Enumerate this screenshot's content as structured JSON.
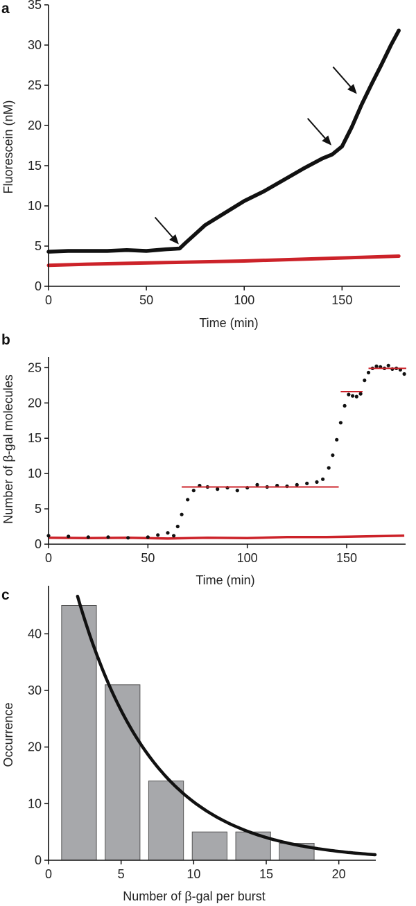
{
  "figure": {
    "panel_labels": [
      "a",
      "b",
      "c"
    ]
  },
  "chart_data": [
    {
      "panel": "a",
      "type": "line",
      "xlabel": "Time (min)",
      "ylabel": "Fluorescein (nM)",
      "xlim": [
        0,
        180
      ],
      "ylim": [
        0,
        35
      ],
      "xticks": [
        0,
        50,
        100,
        150
      ],
      "yticks": [
        0,
        5,
        10,
        15,
        20,
        25,
        30,
        35
      ],
      "grid": false,
      "colors": {
        "black_series": "#111111",
        "red_series": "#cc2229",
        "arrow": "#111111"
      },
      "series": [
        {
          "color": "#111111",
          "x": [
            0,
            10,
            20,
            30,
            40,
            50,
            60,
            67,
            70,
            75,
            80,
            90,
            100,
            110,
            120,
            130,
            140,
            145,
            150,
            155,
            160,
            165,
            170,
            175,
            179
          ],
          "y": [
            4.3,
            4.4,
            4.4,
            4.4,
            4.5,
            4.4,
            4.6,
            4.7,
            5.4,
            6.5,
            7.6,
            9.1,
            10.6,
            11.8,
            13.2,
            14.6,
            15.9,
            16.4,
            17.4,
            19.8,
            22.6,
            25.1,
            27.5,
            30.0,
            31.8
          ]
        },
        {
          "color": "#cc2229",
          "x": [
            0,
            20,
            40,
            60,
            80,
            100,
            120,
            140,
            160,
            179
          ],
          "y": [
            2.6,
            2.75,
            2.85,
            2.95,
            3.05,
            3.15,
            3.3,
            3.45,
            3.6,
            3.75
          ]
        }
      ],
      "arrows": [
        {
          "x": 68,
          "y": 4.7
        },
        {
          "x": 146,
          "y": 17.0
        },
        {
          "x": 159,
          "y": 23.4
        }
      ]
    },
    {
      "panel": "b",
      "type": "scatter",
      "xlabel": "Time (min)",
      "ylabel": "Number of β-gal molecules",
      "xlim": [
        0,
        180
      ],
      "ylim": [
        0,
        27
      ],
      "xticks": [
        0,
        50,
        100,
        150
      ],
      "yticks": [
        0,
        5,
        10,
        15,
        20,
        25
      ],
      "grid": false,
      "colors": {
        "points": "#111111",
        "red_series": "#cc2229",
        "levels": "#cc2229"
      },
      "series": [
        {
          "color": "#111111",
          "x": [
            0,
            10,
            20,
            30,
            40,
            50,
            55,
            60,
            63,
            65,
            67,
            70,
            73,
            76,
            80,
            85,
            90,
            95,
            100,
            105,
            110,
            115,
            120,
            125,
            130,
            135,
            138,
            141,
            143,
            145,
            147,
            149,
            151,
            153,
            155,
            157,
            159,
            161,
            163,
            165,
            167,
            169,
            171,
            173,
            175,
            177,
            179
          ],
          "y": [
            1.2,
            1.1,
            1.0,
            1.0,
            0.9,
            1.0,
            1.3,
            1.6,
            1.2,
            2.5,
            4.2,
            6.3,
            7.6,
            8.3,
            8.1,
            7.8,
            8.0,
            7.6,
            8.0,
            8.4,
            8.1,
            8.3,
            8.2,
            8.4,
            8.6,
            8.8,
            9.2,
            10.8,
            12.6,
            14.8,
            17.2,
            19.6,
            21.2,
            21.0,
            20.9,
            21.3,
            23.2,
            24.3,
            24.9,
            25.2,
            25.1,
            24.9,
            25.3,
            24.8,
            24.9,
            24.7,
            24.1
          ]
        },
        {
          "color": "#cc2229",
          "x": [
            0,
            20,
            40,
            60,
            80,
            100,
            120,
            140,
            160,
            179
          ],
          "y": [
            0.9,
            0.85,
            0.9,
            0.8,
            0.9,
            0.85,
            1.0,
            1.0,
            1.1,
            1.2
          ]
        }
      ],
      "levels": [
        {
          "x_start": 67,
          "x_end": 146,
          "y": 8.1
        },
        {
          "x_start": 147,
          "x_end": 158,
          "y": 21.6
        },
        {
          "x_start": 161,
          "x_end": 180,
          "y": 24.9
        }
      ]
    },
    {
      "panel": "c",
      "type": "bar",
      "xlabel": "Number of β-gal per burst",
      "ylabel": "Occurrence",
      "xlim": [
        0,
        22.5
      ],
      "ylim": [
        0,
        48
      ],
      "xticks": [
        0,
        5,
        10,
        15,
        20
      ],
      "yticks": [
        0,
        10,
        20,
        30,
        40
      ],
      "grid": false,
      "colors": {
        "bars": "#a7a8ab",
        "bar_edge": "#555555",
        "fit_curve": "#111111"
      },
      "bars": [
        {
          "x_start": 0.9,
          "x_end": 3.3,
          "value": 45
        },
        {
          "x_start": 3.9,
          "x_end": 6.3,
          "value": 31
        },
        {
          "x_start": 6.9,
          "x_end": 9.3,
          "value": 14
        },
        {
          "x_start": 9.9,
          "x_end": 12.3,
          "value": 5
        },
        {
          "x_start": 12.9,
          "x_end": 15.3,
          "value": 5
        },
        {
          "x_start": 15.9,
          "x_end": 18.3,
          "value": 3
        }
      ],
      "fit": {
        "type": "exponential",
        "amplitude": 68,
        "decay": 5.3,
        "x_range": [
          2.0,
          22.5
        ]
      }
    }
  ]
}
